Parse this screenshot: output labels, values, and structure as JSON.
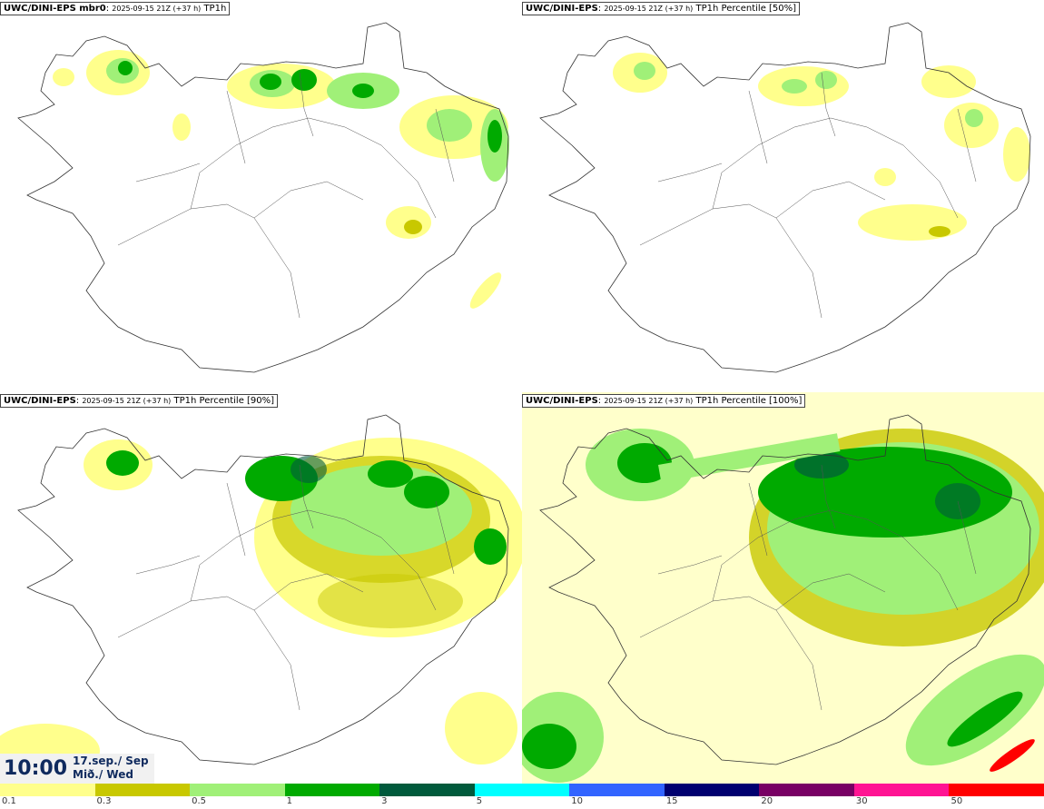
{
  "panels": [
    {
      "model": "UWC/DINI-EPS mbr0",
      "date": "2025-09-15 21Z (+37 h)",
      "product": "TP1h"
    },
    {
      "model": "UWC/DINI-EPS",
      "date": "2025-09-15 21Z (+37 h)",
      "product": "TP1h Percentile [50%]"
    },
    {
      "model": "UWC/DINI-EPS",
      "date": "2025-09-15 21Z (+37 h)",
      "product": "TP1h Percentile [90%]"
    },
    {
      "model": "UWC/DINI-EPS",
      "date": "2025-09-15 21Z (+37 h)",
      "product": "TP1h Percentile [100%]"
    }
  ],
  "valid_time": {
    "time": "10:00",
    "date": "17.sep./ Sep",
    "weekday": "Mið./ Wed"
  },
  "legend": {
    "colors": [
      "#ffff8c",
      "#c8c800",
      "#a0f078",
      "#00aa00",
      "#005a3c",
      "#00ffff",
      "#3264ff",
      "#000070",
      "#780064",
      "#ff1493",
      "#ff0000"
    ],
    "labels": [
      "0.1",
      "0.3",
      "0.5",
      "1",
      "3",
      "5",
      "10",
      "15",
      "20",
      "30",
      "50"
    ]
  },
  "colors": {
    "coast": "#333333",
    "background": "#ffffff"
  }
}
